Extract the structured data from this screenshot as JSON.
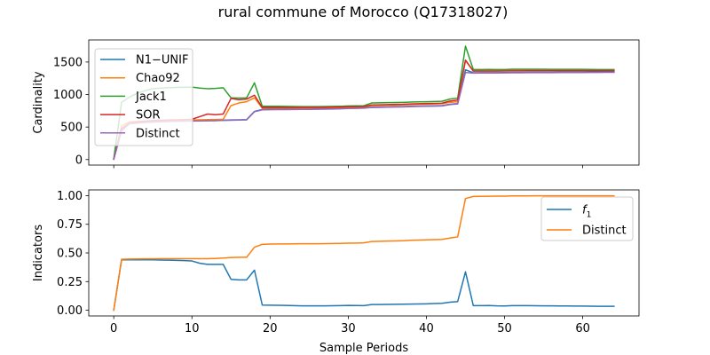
{
  "figure": {
    "title": "rural commune of Morocco (Q17318027)"
  },
  "chart_data": [
    {
      "type": "line",
      "id": "top",
      "xlabel": "",
      "ylabel": "Cardinality",
      "xlim": [
        -3.2,
        67.2
      ],
      "ylim": [
        -85,
        1840
      ],
      "xticks": [
        0,
        10,
        20,
        30,
        40,
        50,
        60
      ],
      "yticks": [
        0,
        500,
        1000,
        1500
      ],
      "show_xtick_labels": false,
      "grid": false,
      "legend": {
        "placement": "top-left"
      },
      "series": [
        {
          "name": "N1−UNIF",
          "color": "#1f77b4",
          "x": [
            0,
            1,
            2,
            3,
            4,
            5,
            6,
            7,
            8,
            9,
            10,
            11,
            12,
            13,
            14,
            15,
            16,
            17,
            18,
            19,
            20,
            21,
            22,
            23,
            24,
            25,
            26,
            27,
            28,
            29,
            30,
            31,
            32,
            33,
            34,
            35,
            36,
            37,
            38,
            39,
            40,
            41,
            42,
            43,
            44,
            45,
            46,
            47,
            48,
            49,
            50,
            51,
            52,
            53,
            54,
            55,
            56,
            57,
            58,
            59,
            60,
            61,
            62,
            63,
            64
          ],
          "y": [
            5,
            465,
            555,
            565,
            575,
            580,
            585,
            590,
            590,
            592,
            595,
            597,
            598,
            600,
            605,
            610,
            612,
            615,
            740,
            770,
            772,
            773,
            774,
            775,
            776,
            777,
            778,
            780,
            782,
            785,
            790,
            792,
            795,
            805,
            807,
            810,
            812,
            815,
            820,
            822,
            825,
            827,
            830,
            850,
            860,
            1380,
            1335,
            1336,
            1336,
            1337,
            1338,
            1340,
            1340,
            1341,
            1341,
            1342,
            1342,
            1343,
            1343,
            1344,
            1344,
            1345,
            1345,
            1346,
            1346
          ]
        },
        {
          "name": "Chao92",
          "color": "#ff7f0e",
          "x": [
            0,
            1,
            2,
            3,
            4,
            5,
            6,
            7,
            8,
            9,
            10,
            11,
            12,
            13,
            14,
            15,
            16,
            17,
            18,
            19,
            20,
            21,
            22,
            23,
            24,
            25,
            26,
            27,
            28,
            29,
            30,
            31,
            32,
            33,
            34,
            35,
            36,
            37,
            38,
            39,
            40,
            41,
            42,
            43,
            44,
            45,
            46,
            47,
            48,
            49,
            50,
            51,
            52,
            53,
            54,
            55,
            56,
            57,
            58,
            59,
            60,
            61,
            62,
            63,
            64
          ],
          "y": [
            10,
            520,
            580,
            590,
            595,
            600,
            605,
            605,
            608,
            610,
            610,
            612,
            615,
            617,
            620,
            830,
            870,
            890,
            950,
            790,
            790,
            791,
            792,
            792,
            793,
            794,
            795,
            796,
            798,
            800,
            805,
            806,
            808,
            830,
            832,
            835,
            837,
            840,
            845,
            848,
            852,
            855,
            858,
            880,
            890,
            1520,
            1370,
            1370,
            1370,
            1370,
            1372,
            1375,
            1375,
            1375,
            1375,
            1375,
            1375,
            1375,
            1375,
            1375,
            1375,
            1375,
            1375,
            1375,
            1375
          ]
        },
        {
          "name": "Jack1",
          "color": "#2ca02c",
          "x": [
            0,
            1,
            2,
            3,
            4,
            5,
            6,
            7,
            8,
            9,
            10,
            11,
            12,
            13,
            14,
            15,
            16,
            17,
            18,
            19,
            20,
            21,
            22,
            23,
            24,
            25,
            26,
            27,
            28,
            29,
            30,
            31,
            32,
            33,
            34,
            35,
            36,
            37,
            38,
            39,
            40,
            41,
            42,
            43,
            44,
            45,
            46,
            47,
            48,
            49,
            50,
            51,
            52,
            53,
            54,
            55,
            56,
            57,
            58,
            59,
            60,
            61,
            62,
            63,
            64
          ],
          "y": [
            10,
            880,
            960,
            1020,
            1060,
            1090,
            1100,
            1105,
            1110,
            1112,
            1115,
            1100,
            1090,
            1095,
            1105,
            950,
            945,
            950,
            1180,
            820,
            820,
            819,
            818,
            816,
            815,
            815,
            815,
            816,
            818,
            820,
            825,
            826,
            828,
            870,
            872,
            875,
            877,
            880,
            885,
            888,
            890,
            893,
            896,
            930,
            945,
            1745,
            1385,
            1385,
            1386,
            1385,
            1385,
            1390,
            1390,
            1390,
            1390,
            1390,
            1388,
            1388,
            1388,
            1387,
            1387,
            1386,
            1385,
            1384,
            1384
          ]
        },
        {
          "name": "SOR",
          "color": "#d62728",
          "x": [
            0,
            1,
            2,
            3,
            4,
            5,
            6,
            7,
            8,
            9,
            10,
            11,
            12,
            13,
            14,
            15,
            16,
            17,
            18,
            19,
            20,
            21,
            22,
            23,
            24,
            25,
            26,
            27,
            28,
            29,
            30,
            31,
            32,
            33,
            34,
            35,
            36,
            37,
            38,
            39,
            40,
            41,
            42,
            43,
            44,
            45,
            46,
            47,
            48,
            49,
            50,
            51,
            52,
            53,
            54,
            55,
            56,
            57,
            58,
            59,
            60,
            61,
            62,
            63,
            64
          ],
          "y": [
            10,
            480,
            560,
            575,
            590,
            600,
            605,
            610,
            612,
            615,
            620,
            660,
            700,
            690,
            700,
            940,
            920,
            930,
            990,
            800,
            800,
            801,
            801,
            801,
            801,
            802,
            802,
            803,
            805,
            808,
            812,
            813,
            815,
            840,
            842,
            845,
            848,
            850,
            855,
            858,
            862,
            864,
            867,
            900,
            915,
            1530,
            1360,
            1360,
            1361,
            1361,
            1362,
            1364,
            1364,
            1365,
            1365,
            1365,
            1365,
            1365,
            1365,
            1365,
            1365,
            1365,
            1365,
            1365,
            1365
          ]
        },
        {
          "name": "Distinct",
          "color": "#9467bd",
          "x": [
            0,
            1,
            2,
            3,
            4,
            5,
            6,
            7,
            8,
            9,
            10,
            11,
            12,
            13,
            14,
            15,
            16,
            17,
            18,
            19,
            20,
            21,
            22,
            23,
            24,
            25,
            26,
            27,
            28,
            29,
            30,
            31,
            32,
            33,
            34,
            35,
            36,
            37,
            38,
            39,
            40,
            41,
            42,
            43,
            44,
            45,
            46,
            47,
            48,
            49,
            50,
            51,
            52,
            53,
            54,
            55,
            56,
            57,
            58,
            59,
            60,
            61,
            62,
            63,
            64
          ],
          "y": [
            5,
            440,
            550,
            560,
            570,
            575,
            580,
            585,
            588,
            590,
            592,
            595,
            597,
            598,
            602,
            605,
            608,
            610,
            735,
            765,
            767,
            768,
            769,
            770,
            771,
            772,
            773,
            775,
            777,
            780,
            785,
            787,
            790,
            800,
            802,
            805,
            807,
            810,
            815,
            817,
            820,
            822,
            825,
            845,
            855,
            1340,
            1330,
            1331,
            1331,
            1332,
            1333,
            1335,
            1335,
            1336,
            1336,
            1337,
            1337,
            1338,
            1338,
            1339,
            1339,
            1340,
            1340,
            1341,
            1341
          ]
        }
      ]
    },
    {
      "type": "line",
      "id": "bottom",
      "xlabel": "Sample Periods",
      "ylabel": "Indicators",
      "xlim": [
        -3.2,
        67.2
      ],
      "ylim": [
        -0.05,
        1.05
      ],
      "xticks": [
        0,
        10,
        20,
        30,
        40,
        50,
        60
      ],
      "yticks": [
        0.0,
        0.25,
        0.5,
        0.75,
        1.0
      ],
      "ytick_labels": [
        "0.00",
        "0.25",
        "0.50",
        "0.75",
        "1.00"
      ],
      "show_xtick_labels": true,
      "grid": false,
      "legend": {
        "placement": "top-right"
      },
      "series": [
        {
          "name": "f1",
          "legend_main": "f",
          "legend_sub": "1",
          "color": "#1f77b4",
          "x": [
            0,
            1,
            2,
            3,
            4,
            5,
            6,
            7,
            8,
            9,
            10,
            11,
            12,
            13,
            14,
            15,
            16,
            17,
            18,
            19,
            20,
            21,
            22,
            23,
            24,
            25,
            26,
            27,
            28,
            29,
            30,
            31,
            32,
            33,
            34,
            35,
            36,
            37,
            38,
            39,
            40,
            41,
            42,
            43,
            44,
            45,
            46,
            47,
            48,
            49,
            50,
            51,
            52,
            53,
            54,
            55,
            56,
            57,
            58,
            59,
            60,
            61,
            62,
            63,
            64
          ],
          "y": [
            0.0,
            0.44,
            0.44,
            0.44,
            0.44,
            0.44,
            0.438,
            0.437,
            0.435,
            0.433,
            0.43,
            0.41,
            0.4,
            0.4,
            0.4,
            0.27,
            0.265,
            0.265,
            0.35,
            0.045,
            0.044,
            0.043,
            0.042,
            0.04,
            0.038,
            0.038,
            0.038,
            0.038,
            0.039,
            0.04,
            0.042,
            0.041,
            0.04,
            0.05,
            0.05,
            0.051,
            0.052,
            0.053,
            0.054,
            0.055,
            0.056,
            0.058,
            0.06,
            0.07,
            0.075,
            0.335,
            0.04,
            0.04,
            0.041,
            0.038,
            0.037,
            0.04,
            0.04,
            0.04,
            0.039,
            0.038,
            0.038,
            0.037,
            0.037,
            0.036,
            0.036,
            0.035,
            0.034,
            0.034,
            0.034
          ]
        },
        {
          "name": "Distinct",
          "color": "#ff7f0e",
          "x": [
            0,
            1,
            2,
            3,
            4,
            5,
            6,
            7,
            8,
            9,
            10,
            11,
            12,
            13,
            14,
            15,
            16,
            17,
            18,
            19,
            20,
            21,
            22,
            23,
            24,
            25,
            26,
            27,
            28,
            29,
            30,
            31,
            32,
            33,
            34,
            35,
            36,
            37,
            38,
            39,
            40,
            41,
            42,
            43,
            44,
            45,
            46,
            47,
            48,
            49,
            50,
            51,
            52,
            53,
            54,
            55,
            56,
            57,
            58,
            59,
            60,
            61,
            62,
            63,
            64
          ],
          "y": [
            0.0,
            0.445,
            0.447,
            0.448,
            0.449,
            0.449,
            0.45,
            0.45,
            0.45,
            0.45,
            0.45,
            0.45,
            0.45,
            0.452,
            0.455,
            0.46,
            0.462,
            0.462,
            0.55,
            0.575,
            0.577,
            0.578,
            0.578,
            0.579,
            0.58,
            0.58,
            0.58,
            0.581,
            0.582,
            0.583,
            0.585,
            0.586,
            0.588,
            0.6,
            0.602,
            0.604,
            0.605,
            0.607,
            0.61,
            0.612,
            0.614,
            0.616,
            0.618,
            0.63,
            0.64,
            0.975,
            0.993,
            0.994,
            0.995,
            0.996,
            0.996,
            0.998,
            0.998,
            0.998,
            0.999,
            0.999,
            0.999,
            0.999,
            0.999,
            0.999,
            0.999,
            0.999,
            0.999,
            0.999,
            0.999
          ]
        }
      ]
    }
  ]
}
